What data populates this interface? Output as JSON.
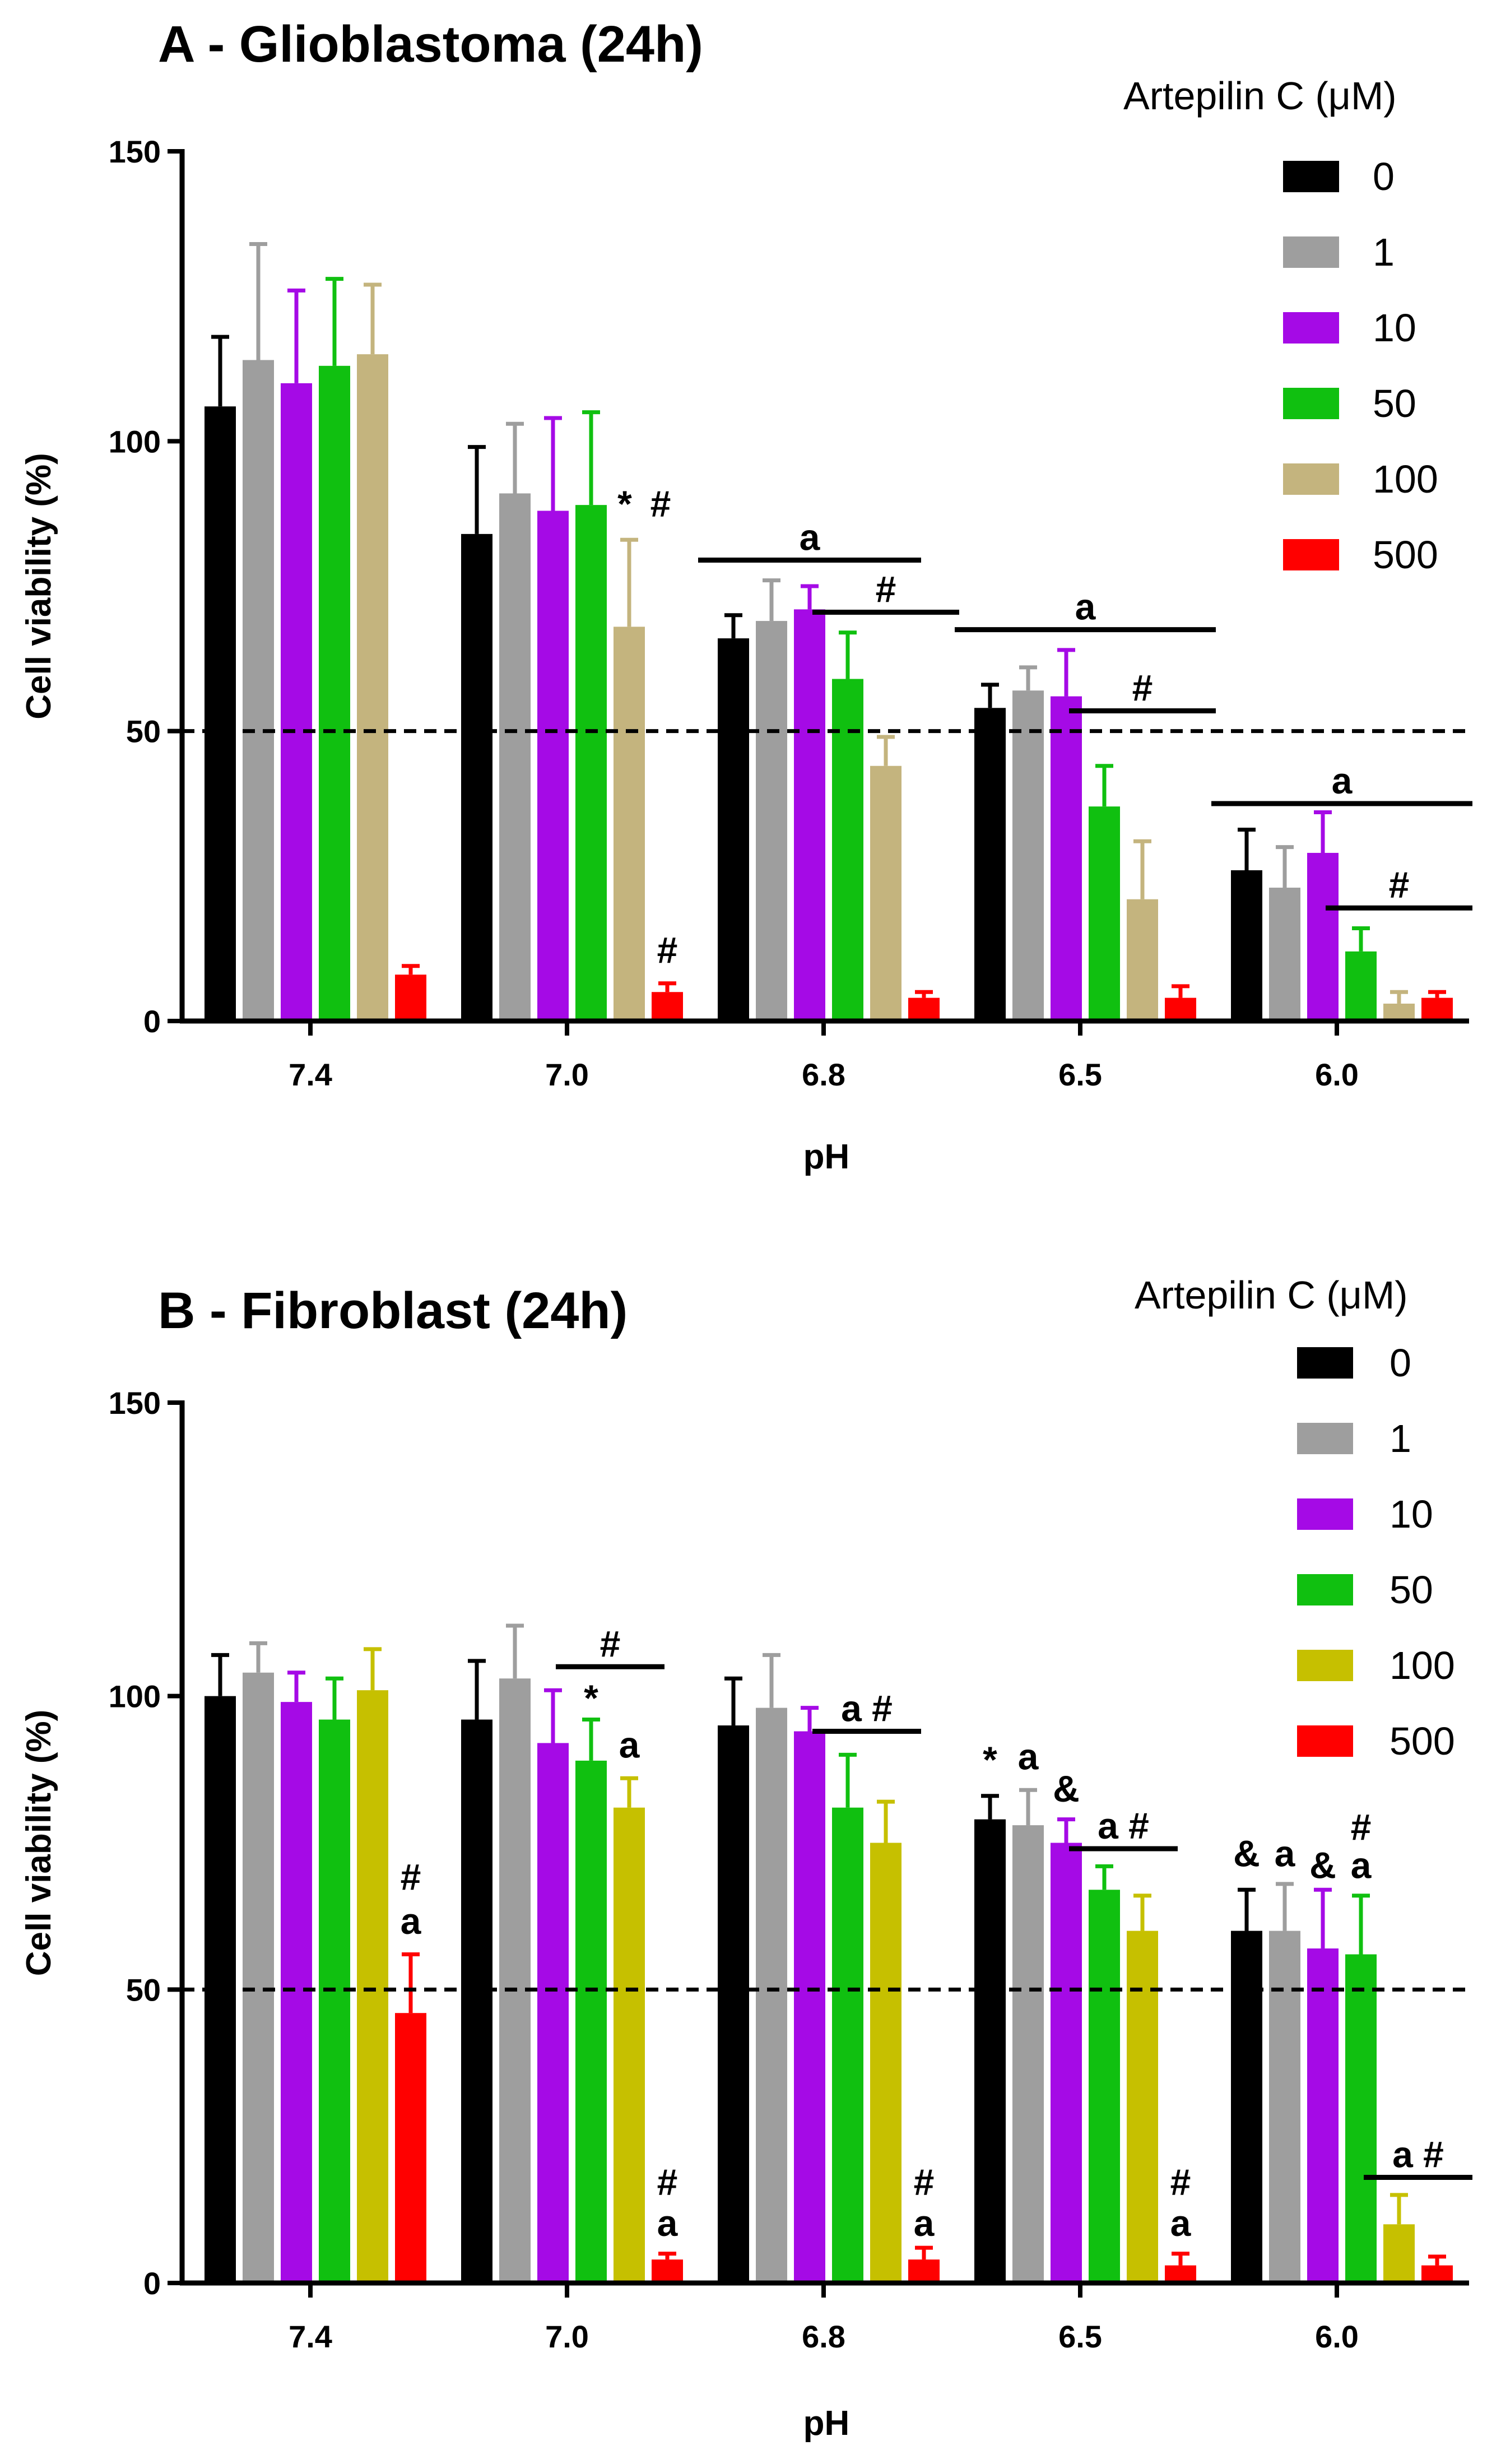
{
  "chart_data": [
    {
      "type": "bar",
      "title": "A - Glioblastoma (24h)",
      "xlabel": "pH",
      "ylabel": "Cell viability (%)",
      "ylim": [
        0,
        150
      ],
      "yticks": [
        0,
        50,
        100,
        150
      ],
      "reference_line": {
        "y": 50,
        "style": "dashed"
      },
      "legend": {
        "title": "Artepilin C (μM)",
        "placement": "top-right"
      },
      "categories": [
        "7.4",
        "7.0",
        "6.8",
        "6.5",
        "6.0"
      ],
      "series": [
        {
          "name": "0",
          "color": "#000000",
          "values": [
            106,
            84,
            66,
            54,
            26
          ],
          "errors": [
            12,
            15,
            4,
            4,
            7
          ]
        },
        {
          "name": "1",
          "color": "#9e9e9e",
          "values": [
            114,
            91,
            69,
            57,
            23
          ],
          "errors": [
            20,
            12,
            7,
            4,
            7
          ]
        },
        {
          "name": "10",
          "color": "#a50ae6",
          "values": [
            110,
            88,
            71,
            56,
            29
          ],
          "errors": [
            16,
            16,
            4,
            8,
            7
          ]
        },
        {
          "name": "50",
          "color": "#10c010",
          "values": [
            113,
            89,
            59,
            37,
            12
          ],
          "errors": [
            15,
            16,
            8,
            7,
            4
          ]
        },
        {
          "name": "100",
          "color": "#c4b47e",
          "values": [
            115,
            68,
            44,
            21,
            3
          ],
          "errors": [
            12,
            15,
            5,
            10,
            2
          ]
        },
        {
          "name": "500",
          "color": "#ff0000",
          "values": [
            8,
            5,
            4,
            4,
            4
          ],
          "errors": [
            1.5,
            1.5,
            1,
            2,
            1
          ]
        }
      ],
      "annotations": [
        {
          "text": "*",
          "category": "7.0",
          "series": "100",
          "y": 87
        },
        {
          "text": "#",
          "category": "7.0",
          "series": "100",
          "y": 87
        },
        {
          "text": "#",
          "category": "7.0",
          "series": "500",
          "y": 10
        },
        {
          "text": "a",
          "bracket": [
            "6.8",
            "0",
            "6.8",
            "100"
          ],
          "y": 79.5
        },
        {
          "text": "#",
          "bracket": [
            "6.8",
            "50",
            "6.8",
            "500"
          ],
          "y": 70.5
        },
        {
          "text": "a",
          "bracket": [
            "6.5",
            "0",
            "6.5",
            "500"
          ],
          "y": 67.5
        },
        {
          "text": "#",
          "bracket": [
            "6.5",
            "50",
            "6.5",
            "500"
          ],
          "y": 53.5
        },
        {
          "text": "a",
          "bracket": [
            "6.0",
            "0",
            "6.0",
            "500"
          ],
          "y": 37.5
        },
        {
          "text": "#",
          "bracket": [
            "6.0",
            "50",
            "6.0",
            "500"
          ],
          "y": 19.5
        }
      ]
    },
    {
      "type": "bar",
      "title": "B - Fibroblast (24h)",
      "xlabel": "pH",
      "ylabel": "Cell viability (%)",
      "ylim": [
        0,
        150
      ],
      "yticks": [
        0,
        50,
        100,
        150
      ],
      "reference_line": {
        "y": 50,
        "style": "dashed"
      },
      "legend": {
        "title": "Artepilin C (μM)",
        "placement": "top-right"
      },
      "categories": [
        "7.4",
        "7.0",
        "6.8",
        "6.5",
        "6.0"
      ],
      "series": [
        {
          "name": "0",
          "color": "#000000",
          "values": [
            100,
            96,
            95,
            79,
            60
          ],
          "errors": [
            7,
            10,
            8,
            4,
            7
          ]
        },
        {
          "name": "1",
          "color": "#9e9e9e",
          "values": [
            104,
            103,
            98,
            78,
            60
          ],
          "errors": [
            5,
            9,
            9,
            6,
            8
          ]
        },
        {
          "name": "10",
          "color": "#a50ae6",
          "values": [
            99,
            92,
            94,
            75,
            57
          ],
          "errors": [
            5,
            9,
            4,
            4,
            10
          ]
        },
        {
          "name": "50",
          "color": "#10c010",
          "values": [
            96,
            89,
            81,
            67,
            56
          ],
          "errors": [
            7,
            7,
            9,
            4,
            10
          ]
        },
        {
          "name": "100",
          "color": "#c6c000",
          "values": [
            101,
            81,
            75,
            60,
            10
          ],
          "errors": [
            7,
            5,
            7,
            6,
            5
          ]
        },
        {
          "name": "500",
          "color": "#ff0000",
          "values": [
            46,
            4,
            4,
            3,
            3
          ],
          "errors": [
            10,
            1,
            2,
            2,
            1.5
          ]
        }
      ],
      "annotations": [
        {
          "text": "#",
          "category": "7.4",
          "series": "500",
          "y": 67
        },
        {
          "text": "a",
          "category": "7.4",
          "series": "500",
          "y": 59.5
        },
        {
          "text": "#",
          "bracket": [
            "7.0",
            "50",
            "7.0",
            "100"
          ],
          "y": 105
        },
        {
          "text": "*",
          "category": "7.0",
          "series": "50",
          "y": 97.5
        },
        {
          "text": "a",
          "category": "7.0",
          "series": "100",
          "y": 89.5
        },
        {
          "text": "#",
          "category": "7.0",
          "series": "500",
          "y": 15
        },
        {
          "text": "a",
          "category": "7.0",
          "series": "500",
          "y": 8
        },
        {
          "text": "a #",
          "bracket": [
            "6.8",
            "50",
            "6.8",
            "100"
          ],
          "y": 94
        },
        {
          "text": "#",
          "category": "6.8",
          "series": "500",
          "y": 15
        },
        {
          "text": "a",
          "category": "6.8",
          "series": "500",
          "y": 8
        },
        {
          "text": "*",
          "category": "6.5",
          "series": "0",
          "y": 87
        },
        {
          "text": "a",
          "category": "6.5",
          "series": "1",
          "y": 87.5
        },
        {
          "text": "&",
          "category": "6.5",
          "series": "10",
          "y": 82
        },
        {
          "text": "a #",
          "bracket": [
            "6.5",
            "50",
            "6.5",
            "100"
          ],
          "y": 74
        },
        {
          "text": "#",
          "category": "6.5",
          "series": "500",
          "y": 15
        },
        {
          "text": "a",
          "category": "6.5",
          "series": "500",
          "y": 8
        },
        {
          "text": "&",
          "category": "6.0",
          "series": "0",
          "y": 71
        },
        {
          "text": "a",
          "category": "6.0",
          "series": "1",
          "y": 71
        },
        {
          "text": "&",
          "category": "6.0",
          "series": "10",
          "y": 69
        },
        {
          "text": "a",
          "category": "6.0",
          "series": "50",
          "y": 69
        },
        {
          "text": "#",
          "category": "6.0",
          "series": "50",
          "y": 75.5
        },
        {
          "text": "a #",
          "bracket": [
            "6.0",
            "100",
            "6.0",
            "500"
          ],
          "y": 18
        }
      ]
    }
  ]
}
